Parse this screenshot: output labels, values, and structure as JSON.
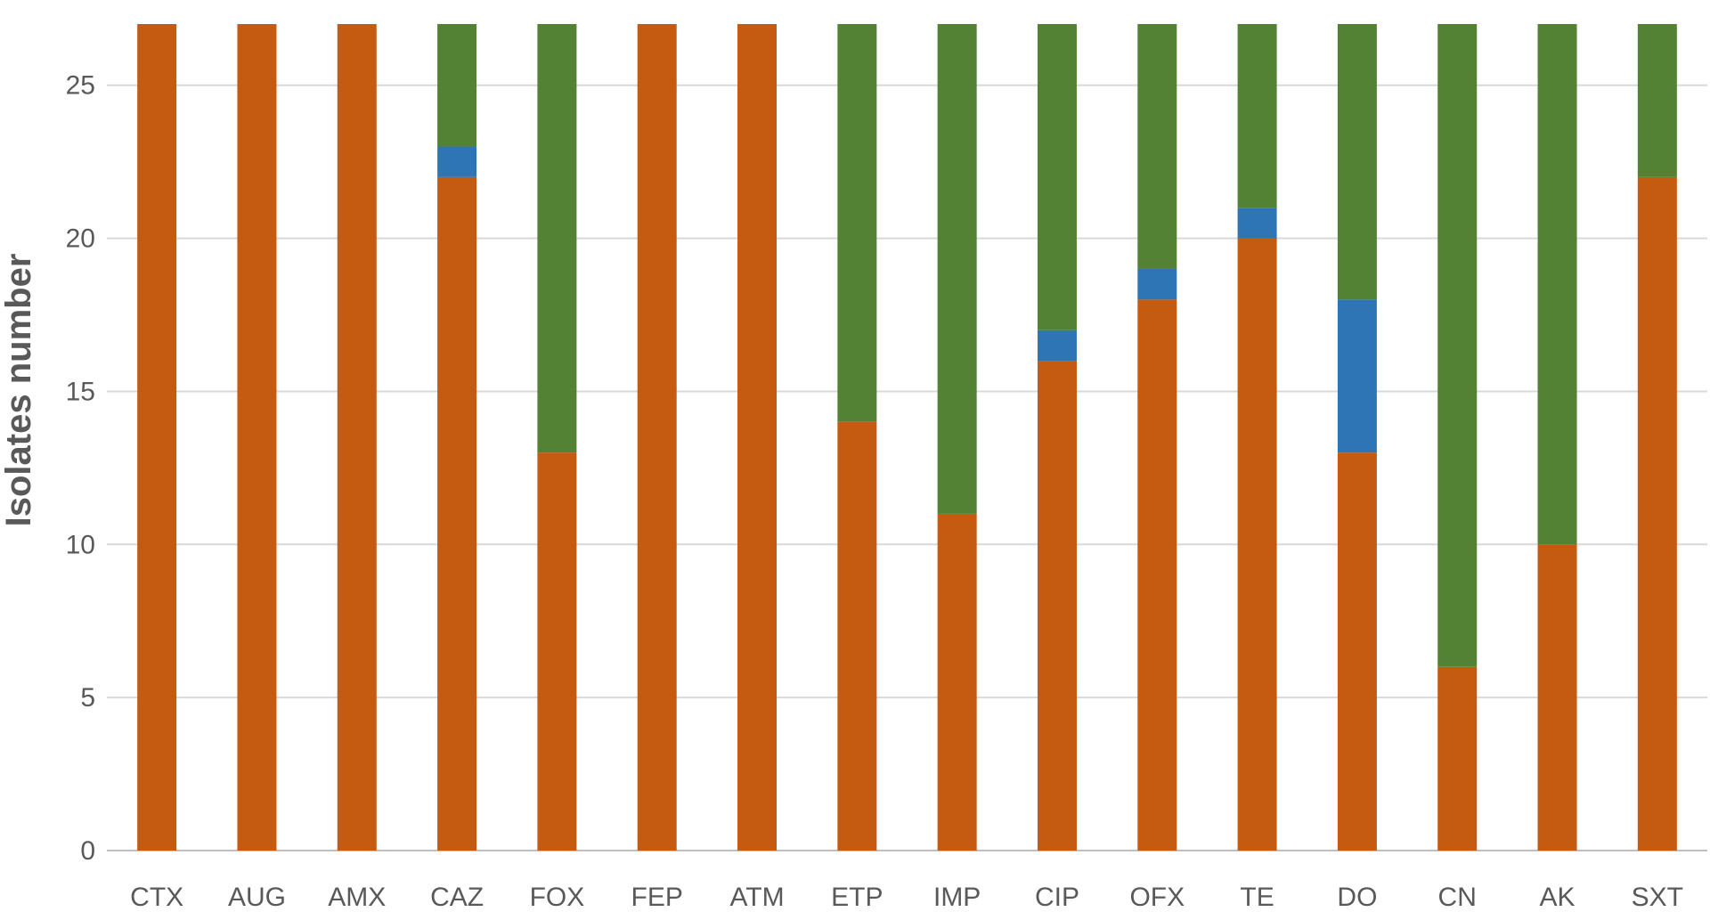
{
  "chart_data": {
    "type": "bar",
    "stacked": true,
    "categories": [
      "CTX",
      "AUG",
      "AMX",
      "CAZ",
      "FOX",
      "FEP",
      "ATM",
      "ETP",
      "IMP",
      "CIP",
      "OFX",
      "TE",
      "DO",
      "CN",
      "AK",
      "SXT"
    ],
    "series": [
      {
        "color": "#C55A11",
        "values": [
          27,
          27,
          27,
          22,
          13,
          27,
          27,
          14,
          11,
          16,
          18,
          20,
          13,
          6,
          10,
          22
        ]
      },
      {
        "color": "#2E75B6",
        "values": [
          0,
          0,
          0,
          1,
          0,
          0,
          0,
          0,
          0,
          1,
          1,
          1,
          5,
          0,
          0,
          0
        ]
      },
      {
        "color": "#548235",
        "values": [
          0,
          0,
          0,
          4,
          14,
          0,
          0,
          13,
          16,
          10,
          8,
          6,
          9,
          21,
          17,
          5
        ]
      }
    ],
    "title": "",
    "xlabel": "",
    "ylabel": "Isolates number",
    "ylim": [
      0,
      27
    ],
    "yticks": [
      0,
      5,
      10,
      15,
      20,
      25
    ],
    "grid": true,
    "legend": "none"
  }
}
